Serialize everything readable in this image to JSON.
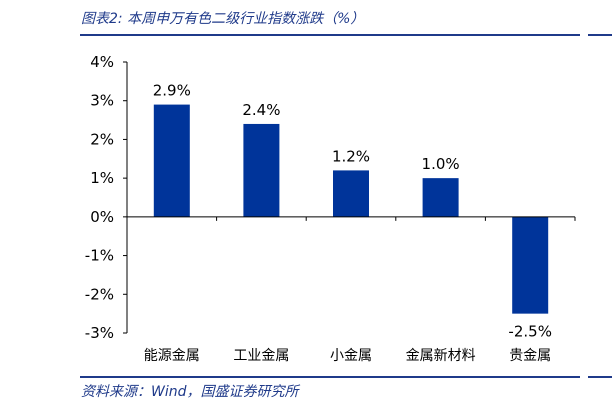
{
  "header": {
    "title": "图表2:  本周申万有色二级行业指数涨跌（%）"
  },
  "footer": {
    "source": "资料来源：Wind，国盛证券研究所"
  },
  "colors": {
    "bar": "#00349a",
    "rule": "#1f3a8a",
    "axis": "#000000"
  },
  "chart_data": {
    "type": "bar",
    "title": "本周申万有色二级行业指数涨跌（%）",
    "xlabel": "",
    "ylabel": "",
    "categories": [
      "能源金属",
      "工业金属",
      "小金属",
      "金属新材料",
      "贵金属"
    ],
    "values": [
      2.9,
      2.4,
      1.2,
      1.0,
      -2.5
    ],
    "data_labels": [
      "2.9%",
      "2.4%",
      "1.2%",
      "1.0%",
      "-2.5%"
    ],
    "ylim": [
      -3,
      4
    ],
    "yticks": [
      4,
      3,
      2,
      1,
      0,
      -1,
      -2,
      -3
    ],
    "ytick_labels": [
      "4%",
      "3%",
      "2%",
      "1%",
      "0%",
      "-1%",
      "-2%",
      "-3%"
    ],
    "grid": false,
    "legend": "none"
  }
}
